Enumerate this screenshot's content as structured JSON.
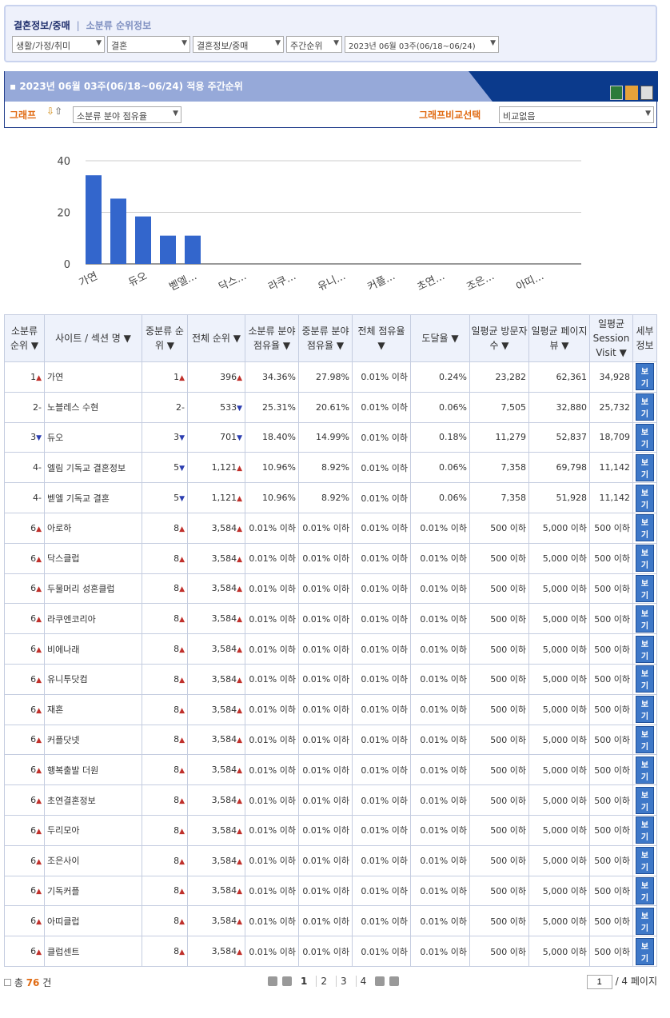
{
  "breadcrumb": {
    "current": "결혼정보/중매",
    "separator": "|",
    "sub": "소분류 순위정보"
  },
  "filters": [
    "생활/가정/취미",
    "결혼",
    "결혼정보/중매",
    "주간순위",
    "2023년 06월 03주(06/18~06/24)"
  ],
  "panel": {
    "title": "2023년 06월 03주(06/18~06/24) 적용 주간순위",
    "graph_label": "그래프",
    "graph_select": "소분류 분야 점유율",
    "compare_label": "그래프비교선택",
    "compare_select": "비교없음",
    "icons": [
      "excel-icon",
      "email-icon",
      "print-icon"
    ]
  },
  "chart_data": {
    "type": "bar",
    "ylim": [
      0,
      40
    ],
    "yticks": [
      0,
      20,
      40
    ],
    "grid": true,
    "color": "#3366cc",
    "categories": [
      "가연",
      "노블레스 수현",
      "듀오",
      "엘림 기독교 결혼정보",
      "벧엘 기독교 결혼",
      "아로하",
      "닥스클럽",
      "두물머리 성혼클럽",
      "라쿠엔코리아",
      "비에나래",
      "유니투닷컴",
      "재혼",
      "커플닷넷",
      "행복출발 더원",
      "초연결혼정보",
      "두리모아",
      "조은사이",
      "기독커플",
      "아띠클럽",
      "클럽센트"
    ],
    "tick_labels": [
      "가연",
      "듀오",
      "벧엘...",
      "닥스...",
      "라쿠...",
      "유니...",
      "커플...",
      "초연...",
      "조은...",
      "아띠..."
    ],
    "values": [
      34.36,
      25.31,
      18.4,
      10.96,
      10.96,
      0,
      0,
      0,
      0,
      0,
      0,
      0,
      0,
      0,
      0,
      0,
      0,
      0,
      0,
      0
    ]
  },
  "table": {
    "headers": [
      "소분류 순위 ▼",
      "사이트 / 섹션 명 ▼",
      "중분류 순위 ▼",
      "전체 순위 ▼",
      "소분류 분야 점유율 ▼",
      "중분류 분야 점유율 ▼",
      "전체 점유율 ▼",
      "도달율 ▼",
      "일평균 방문자 수 ▼",
      "일평균 페이지 뷰 ▼",
      "일평균 Session Visit ▼",
      "세부 정보"
    ],
    "view_label": "보기",
    "rows": [
      [
        "1",
        "up",
        "가연",
        "1",
        "up",
        "396",
        "up",
        "34.36%",
        "27.98%",
        "0.01% 이하",
        "0.24%",
        "23,282",
        "62,361",
        "34,928"
      ],
      [
        "2",
        "-",
        "노블레스 수현",
        "2",
        "-",
        "533",
        "down",
        "25.31%",
        "20.61%",
        "0.01% 이하",
        "0.06%",
        "7,505",
        "32,880",
        "25,732"
      ],
      [
        "3",
        "down",
        "듀오",
        "3",
        "down",
        "701",
        "down",
        "18.40%",
        "14.99%",
        "0.01% 이하",
        "0.18%",
        "11,279",
        "52,837",
        "18,709"
      ],
      [
        "4",
        "-",
        "엘림 기독교 결혼정보",
        "5",
        "down",
        "1,121",
        "up",
        "10.96%",
        "8.92%",
        "0.01% 이하",
        "0.06%",
        "7,358",
        "69,798",
        "11,142"
      ],
      [
        "4",
        "-",
        "벧엘 기독교 결혼",
        "5",
        "down",
        "1,121",
        "up",
        "10.96%",
        "8.92%",
        "0.01% 이하",
        "0.06%",
        "7,358",
        "51,928",
        "11,142"
      ],
      [
        "6",
        "up",
        "아로하",
        "8",
        "up",
        "3,584",
        "up",
        "0.01% 이하",
        "0.01% 이하",
        "0.01% 이하",
        "0.01% 이하",
        "500 이하",
        "5,000 이하",
        "500 이하"
      ],
      [
        "6",
        "up",
        "닥스클럽",
        "8",
        "up",
        "3,584",
        "up",
        "0.01% 이하",
        "0.01% 이하",
        "0.01% 이하",
        "0.01% 이하",
        "500 이하",
        "5,000 이하",
        "500 이하"
      ],
      [
        "6",
        "up",
        "두물머리 성혼클럽",
        "8",
        "up",
        "3,584",
        "up",
        "0.01% 이하",
        "0.01% 이하",
        "0.01% 이하",
        "0.01% 이하",
        "500 이하",
        "5,000 이하",
        "500 이하"
      ],
      [
        "6",
        "up",
        "라쿠엔코리아",
        "8",
        "up",
        "3,584",
        "up",
        "0.01% 이하",
        "0.01% 이하",
        "0.01% 이하",
        "0.01% 이하",
        "500 이하",
        "5,000 이하",
        "500 이하"
      ],
      [
        "6",
        "up",
        "비에나래",
        "8",
        "up",
        "3,584",
        "up",
        "0.01% 이하",
        "0.01% 이하",
        "0.01% 이하",
        "0.01% 이하",
        "500 이하",
        "5,000 이하",
        "500 이하"
      ],
      [
        "6",
        "up",
        "유니투닷컴",
        "8",
        "up",
        "3,584",
        "up",
        "0.01% 이하",
        "0.01% 이하",
        "0.01% 이하",
        "0.01% 이하",
        "500 이하",
        "5,000 이하",
        "500 이하"
      ],
      [
        "6",
        "up",
        "재혼",
        "8",
        "up",
        "3,584",
        "up",
        "0.01% 이하",
        "0.01% 이하",
        "0.01% 이하",
        "0.01% 이하",
        "500 이하",
        "5,000 이하",
        "500 이하"
      ],
      [
        "6",
        "up",
        "커플닷넷",
        "8",
        "up",
        "3,584",
        "up",
        "0.01% 이하",
        "0.01% 이하",
        "0.01% 이하",
        "0.01% 이하",
        "500 이하",
        "5,000 이하",
        "500 이하"
      ],
      [
        "6",
        "up",
        "행복출발 더원",
        "8",
        "up",
        "3,584",
        "up",
        "0.01% 이하",
        "0.01% 이하",
        "0.01% 이하",
        "0.01% 이하",
        "500 이하",
        "5,000 이하",
        "500 이하"
      ],
      [
        "6",
        "up",
        "초연결혼정보",
        "8",
        "up",
        "3,584",
        "up",
        "0.01% 이하",
        "0.01% 이하",
        "0.01% 이하",
        "0.01% 이하",
        "500 이하",
        "5,000 이하",
        "500 이하"
      ],
      [
        "6",
        "up",
        "두리모아",
        "8",
        "up",
        "3,584",
        "up",
        "0.01% 이하",
        "0.01% 이하",
        "0.01% 이하",
        "0.01% 이하",
        "500 이하",
        "5,000 이하",
        "500 이하"
      ],
      [
        "6",
        "up",
        "조은사이",
        "8",
        "up",
        "3,584",
        "up",
        "0.01% 이하",
        "0.01% 이하",
        "0.01% 이하",
        "0.01% 이하",
        "500 이하",
        "5,000 이하",
        "500 이하"
      ],
      [
        "6",
        "up",
        "기독커플",
        "8",
        "up",
        "3,584",
        "up",
        "0.01% 이하",
        "0.01% 이하",
        "0.01% 이하",
        "0.01% 이하",
        "500 이하",
        "5,000 이하",
        "500 이하"
      ],
      [
        "6",
        "up",
        "아띠클럽",
        "8",
        "up",
        "3,584",
        "up",
        "0.01% 이하",
        "0.01% 이하",
        "0.01% 이하",
        "0.01% 이하",
        "500 이하",
        "5,000 이하",
        "500 이하"
      ],
      [
        "6",
        "up",
        "클럽센트",
        "8",
        "up",
        "3,584",
        "up",
        "0.01% 이하",
        "0.01% 이하",
        "0.01% 이하",
        "0.01% 이하",
        "500 이하",
        "5,000 이하",
        "500 이하"
      ]
    ]
  },
  "footer": {
    "total_prefix": "총",
    "total": "76",
    "total_suffix": "건",
    "pages": [
      "1",
      "2",
      "3",
      "4"
    ],
    "current_page": "1",
    "page_input": "1",
    "page_total": "/ 4 페이지"
  }
}
